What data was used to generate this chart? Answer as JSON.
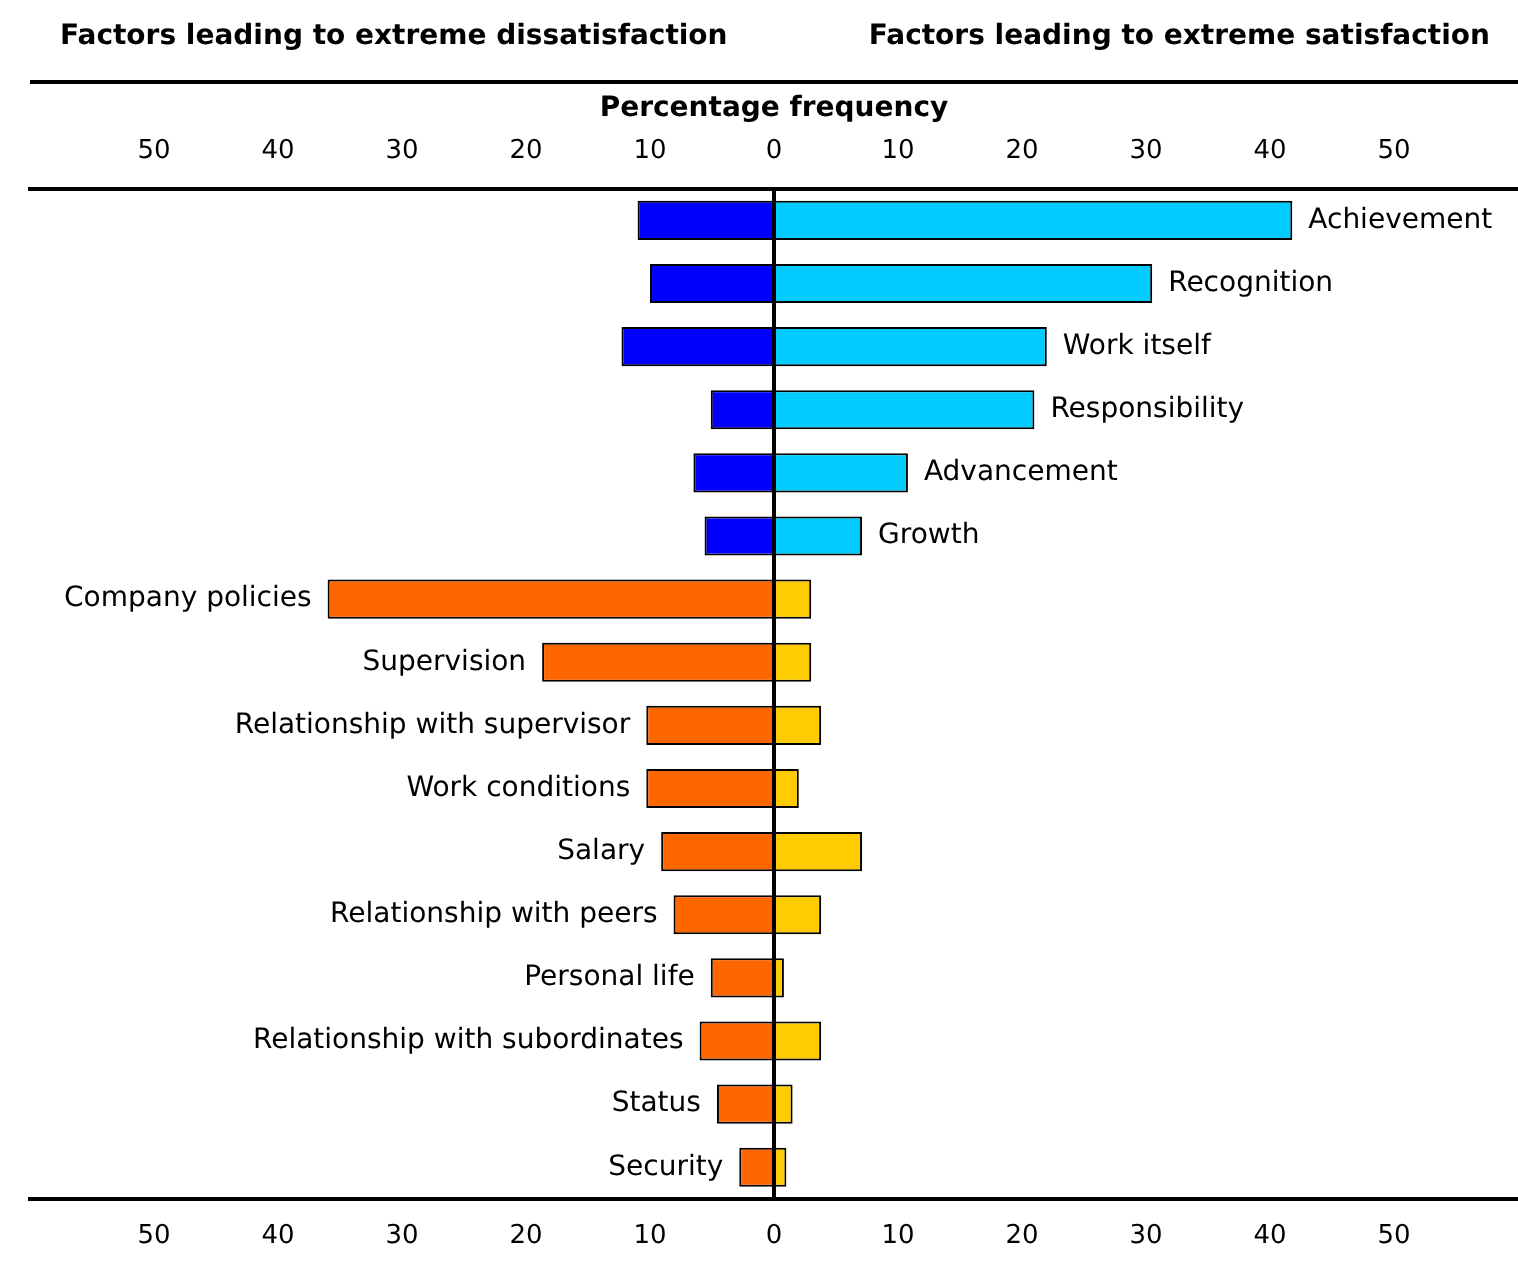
{
  "chart_data": {
    "type": "bar",
    "orientation": "horizontal",
    "stacked": true,
    "annotations": [
      "Factors leading to extreme dissatisfaction",
      "Factors leading to extreme satisfaction"
    ],
    "x2label": "Percentage frequency",
    "categories": [
      "Achievement",
      "Recognition",
      "Work itself",
      "Responsibility",
      "Advancement",
      "Growth",
      "Company policies",
      "Supervision",
      "Relationship with supervisor",
      "Work conditions",
      "Salary",
      "Relationship with peers",
      "Personal life",
      "Relationship with subordinates",
      "Status",
      "Security"
    ],
    "series": [
      {
        "colors": [
          "#0000ff",
          "#0000ff",
          "#0000ff",
          "#0000ff",
          "#0000ff",
          "#0000ff",
          "#ff6600",
          "#ff6600",
          "#ff6600",
          "#ff6600",
          "#ff6600",
          "#ff6600",
          "#ff6600",
          "#ff6600",
          "#ff6600",
          "#ff6600"
        ],
        "values": [
          -11,
          -10,
          -12.3,
          -5.1,
          -6.5,
          -5.6,
          -36,
          -18.7,
          -10.3,
          -10.3,
          -9.1,
          -8.1,
          -5.1,
          -6,
          -4.6,
          -2.8
        ]
      },
      {
        "colors": [
          "#00ccff",
          "#00ccff",
          "#00ccff",
          "#00ccff",
          "#00ccff",
          "#00ccff",
          "#ffcc00",
          "#ffcc00",
          "#ffcc00",
          "#ffcc00",
          "#ffcc00",
          "#ffcc00",
          "#ffcc00",
          "#ffcc00",
          "#ffcc00",
          "#ffcc00"
        ],
        "values": [
          41.8,
          30.5,
          22,
          21,
          10.8,
          7.1,
          3,
          3,
          3.8,
          2,
          7.1,
          3.8,
          0.8,
          3.8,
          1.5,
          1
        ]
      }
    ],
    "xlim": [
      -60,
      60
    ],
    "xticks": [
      {
        "value": -50,
        "label": "50"
      },
      {
        "value": -40,
        "label": "40"
      },
      {
        "value": -30,
        "label": "30"
      },
      {
        "value": -20,
        "label": "20"
      },
      {
        "value": -10,
        "label": "10"
      },
      0,
      10,
      20,
      30,
      40,
      50
    ],
    "x2lim": [
      -60,
      60
    ],
    "x2ticks": [
      {
        "value": -50,
        "label": "50"
      },
      {
        "value": -40,
        "label": "40"
      },
      {
        "value": -30,
        "label": "30"
      },
      {
        "value": -20,
        "label": "20"
      },
      {
        "value": -10,
        "label": "10"
      },
      0,
      10,
      20,
      30,
      40,
      50
    ],
    "grid": false,
    "legend": false
  }
}
